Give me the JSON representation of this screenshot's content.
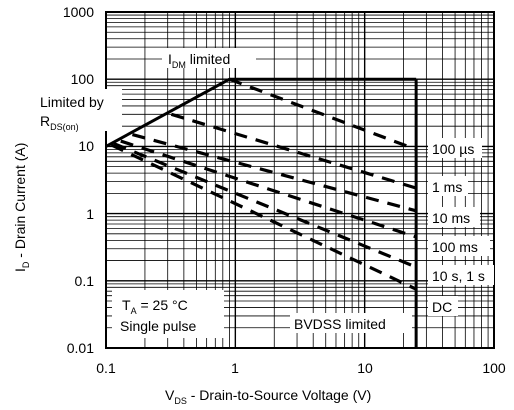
{
  "chart_data": {
    "type": "line",
    "title": "",
    "xlabel": "V",
    "xlabel_sub": "DS",
    "xlabel_rest": " - Drain-to-Source Voltage (V)",
    "ylabel": "I",
    "ylabel_sub": "D",
    "ylabel_rest": " - Drain Current (A)",
    "x_scale": "log",
    "y_scale": "log",
    "xlim": [
      0.1,
      100
    ],
    "ylim": [
      0.01,
      1000
    ],
    "grid": true,
    "x_tick_labels": [
      "0.1",
      "1",
      "10",
      "100"
    ],
    "y_tick_labels": [
      "0.01",
      "0.1",
      "1",
      "10",
      "100",
      "1000"
    ],
    "boundary": {
      "rdson_x": [
        0.1,
        0.9
      ],
      "rdson_y": [
        10,
        100
      ],
      "idm_x": [
        0.9,
        25
      ],
      "idm_y": [
        100,
        100
      ],
      "bvdss_x": [
        25,
        25
      ],
      "bvdss_y": [
        100,
        0.01
      ]
    },
    "series": [
      {
        "name": "100 µs",
        "x": [
          0.9,
          25
        ],
        "y": [
          100,
          9
        ]
      },
      {
        "name": "1 ms",
        "x": [
          0.32,
          25
        ],
        "y": [
          30,
          2.4
        ]
      },
      {
        "name": "10 ms",
        "x": [
          0.16,
          25
        ],
        "y": [
          15,
          1.1
        ]
      },
      {
        "name": "100 ms",
        "x": [
          0.13,
          25
        ],
        "y": [
          12,
          0.45
        ]
      },
      {
        "name": "10 s, 1 s",
        "x": [
          0.115,
          25
        ],
        "y": [
          11,
          0.16
        ]
      },
      {
        "name": "DC",
        "x": [
          0.11,
          25
        ],
        "y": [
          10.5,
          0.075
        ]
      }
    ],
    "annotations": {
      "idm_main": "I",
      "idm_sub": "DM",
      "idm_rest": " limited",
      "rdson_line1": "Limited by",
      "rdson_main": "R",
      "rdson_sub": "DS(on)",
      "bvdss": "BVDSS limited",
      "ta_main": "T",
      "ta_sub": "A",
      "ta_rest": " = 25 °C",
      "single_pulse": "Single pulse"
    }
  }
}
